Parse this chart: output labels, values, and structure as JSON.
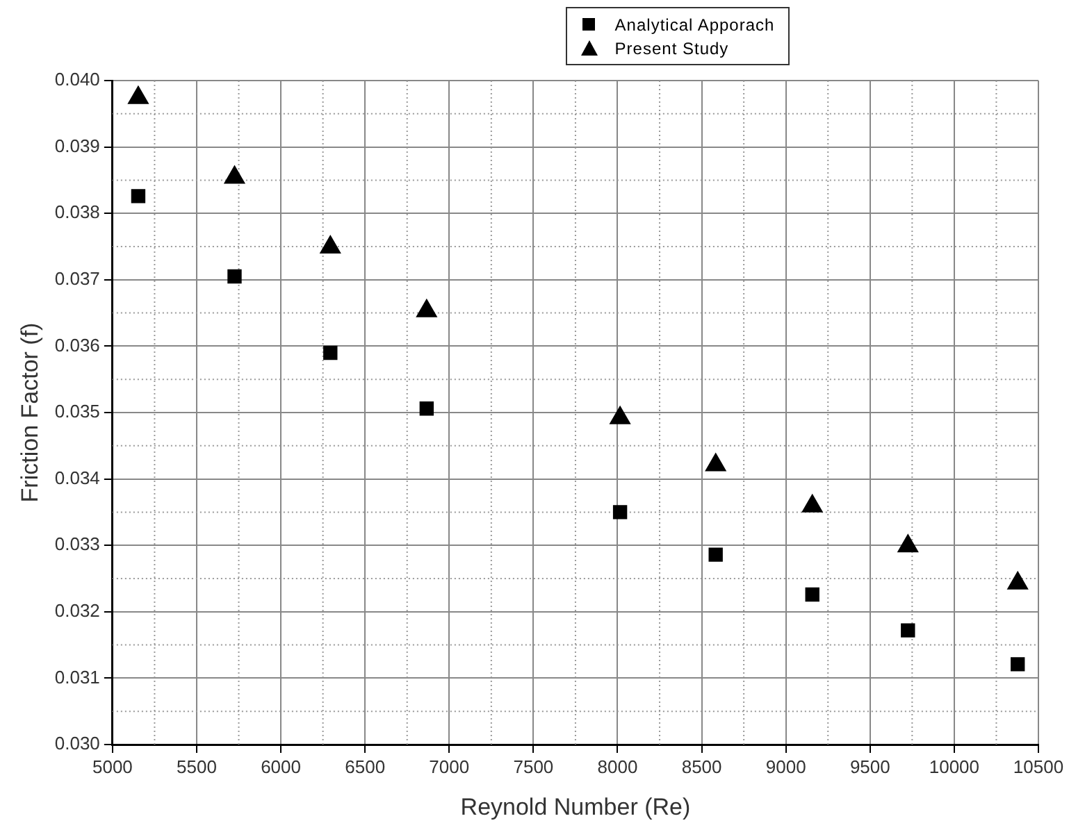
{
  "chart_data": {
    "type": "scatter",
    "xlabel": "Reynold Number (Re)",
    "ylabel": "Friction Factor (f)",
    "x": [
      5153,
      5725,
      6294,
      6866,
      8015,
      8583,
      9157,
      9725,
      10377
    ],
    "series": [
      {
        "name": "Analytical Apporach",
        "color": "#000000",
        "marker": "square",
        "values": [
          0.03826,
          0.03705,
          0.0359,
          0.03506,
          0.0335,
          0.03286,
          0.03226,
          0.03172,
          0.03121
        ]
      },
      {
        "name": "Present Study",
        "color": "#000000",
        "marker": "triangle",
        "values": [
          0.03974,
          0.03854,
          0.03749,
          0.03653,
          0.03492,
          0.03421,
          0.03359,
          0.03299,
          0.03243
        ]
      }
    ],
    "xlim": [
      5000,
      10500
    ],
    "xticks": [
      5000,
      5500,
      6000,
      6500,
      7000,
      7500,
      8000,
      8500,
      9000,
      9500,
      10000,
      10500
    ],
    "ylim": [
      0.03,
      0.04
    ],
    "yticks": [
      {
        "value": 0.03,
        "label": "0.030"
      },
      0.031,
      0.032,
      0.033,
      0.034,
      0.035,
      0.036,
      0.037,
      0.038,
      0.039,
      {
        "value": 0.04,
        "label": "0.040"
      }
    ],
    "grid": true,
    "legend": "top right"
  }
}
